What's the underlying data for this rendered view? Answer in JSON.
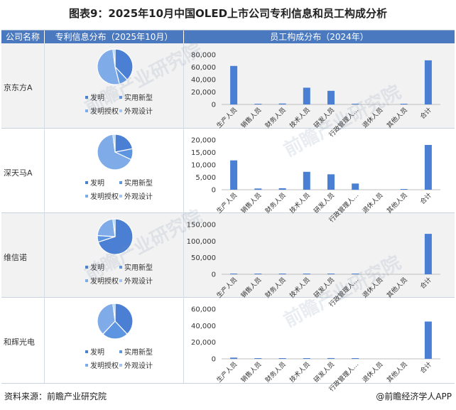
{
  "title": "图表9：2025年10月中国OLED上市公司专利信息和员工构成分析",
  "headers": {
    "company": "公司名称",
    "patent": "专利信息分布（2025年10月）",
    "staff": "员工构成分布（2024年）"
  },
  "footer": {
    "source": "资料来源：前瞻产业研究院",
    "brand": "@前瞻经济学人APP"
  },
  "watermark": "前瞻产业研究院",
  "colors": {
    "header_bg": "#4a79c0",
    "bar": "#4a7fd4",
    "pie": [
      "#4a7fd4",
      "#5d95e0",
      "#7fabe8",
      "#a5c4ee"
    ]
  },
  "chart_data": {
    "pie_legend": [
      "发明",
      "实用新型",
      "发明授权",
      "外观设计"
    ],
    "staff_categories": [
      "生产人员",
      "销售人员",
      "财务人员",
      "技术人员",
      "研发人员",
      "行政管理人…",
      "退休人员",
      "其他人员",
      "合计"
    ],
    "companies": [
      {
        "name": "京东方A",
        "pie": {
          "type": "pie",
          "values": [
            38,
            8,
            52,
            2
          ]
        },
        "bar": {
          "type": "bar",
          "values": [
            62000,
            1200,
            1500,
            27000,
            22000,
            1000,
            0,
            1000,
            71000
          ],
          "ylim": [
            0,
            80000
          ],
          "yticks": [
            "80,000",
            "60,000",
            "40,000",
            "20,000",
            "0"
          ],
          "ytick_values": [
            80000,
            60000,
            40000,
            20000,
            0
          ]
        }
      },
      {
        "name": "深天马A",
        "pie": {
          "type": "pie",
          "values": [
            22,
            10,
            66,
            2
          ]
        },
        "bar": {
          "type": "bar",
          "values": [
            11800,
            500,
            600,
            7200,
            6200,
            2500,
            0,
            100,
            18000
          ],
          "ylim": [
            0,
            20000
          ],
          "yticks": [
            "20,000",
            "15,000",
            "10,000",
            "5,000",
            "0"
          ],
          "ytick_values": [
            20000,
            15000,
            10000,
            5000,
            0
          ]
        }
      },
      {
        "name": "维信诺",
        "pie": {
          "type": "pie",
          "values": [
            70,
            6,
            22,
            2
          ]
        },
        "bar": {
          "type": "bar",
          "values": [
            2000,
            1000,
            900,
            1500,
            1500,
            1000,
            0,
            0,
            122000
          ],
          "ylim": [
            0,
            150000
          ],
          "yticks": [
            "150,000",
            "100,000",
            "50,000",
            "0"
          ],
          "ytick_values": [
            150000,
            100000,
            50000,
            0
          ]
        }
      },
      {
        "name": "和辉光电",
        "pie": {
          "type": "pie",
          "values": [
            38,
            24,
            36,
            2
          ]
        },
        "bar": {
          "type": "bar",
          "values": [
            1500,
            800,
            600,
            500,
            900,
            500,
            0,
            0,
            45000
          ],
          "ylim": [
            0,
            60000
          ],
          "yticks": [
            "60,000",
            "40,000",
            "20,000",
            "0"
          ],
          "ytick_values": [
            60000,
            40000,
            20000,
            0
          ]
        }
      }
    ]
  }
}
